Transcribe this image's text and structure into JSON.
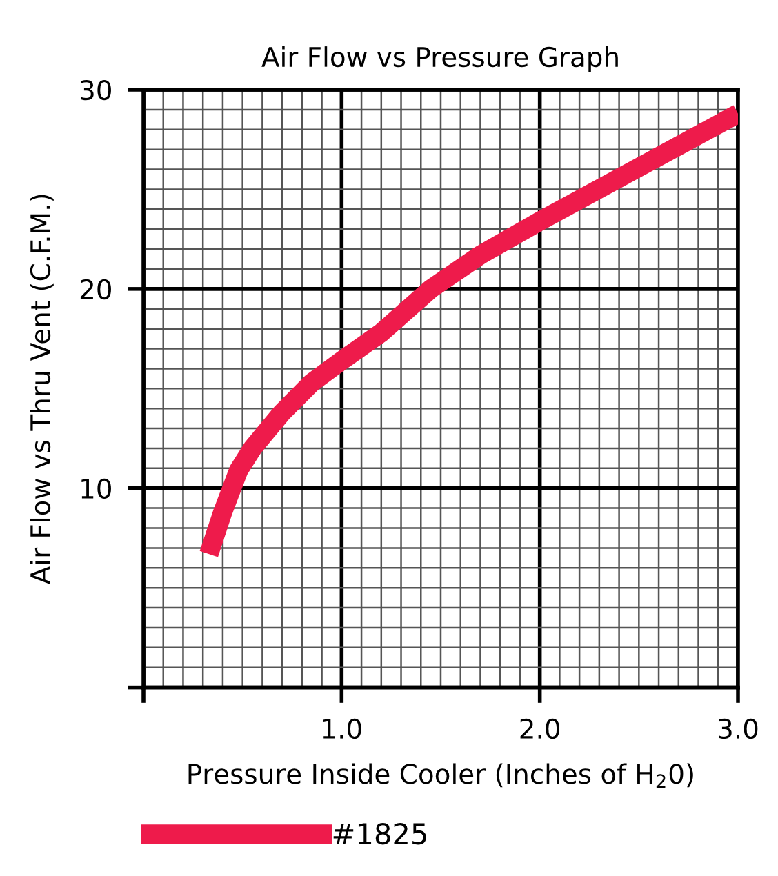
{
  "chart_data": {
    "type": "line",
    "title": "Air Flow vs Pressure Graph",
    "xlabel": "Pressure Inside Cooler (Inches of H$_{2}$0)",
    "ylabel": "Air Flow vs Thru Vent (C.F.M.)",
    "series": [
      {
        "name": "#1825",
        "color": "#ee1b4b",
        "x": [
          0.33,
          0.4,
          0.48,
          0.55,
          0.7,
          0.85,
          1.0,
          1.2,
          1.45,
          1.7,
          2.0,
          2.5,
          3.0
        ],
        "values": [
          6.7,
          8.8,
          10.9,
          12.0,
          13.8,
          15.3,
          16.4,
          17.8,
          20.0,
          21.7,
          23.4,
          26.1,
          28.8
        ]
      }
    ],
    "xlim": [
      0,
      3
    ],
    "ylim": [
      0,
      30
    ],
    "xticks": [
      {
        "value": 0,
        "label": null
      },
      {
        "value": 1,
        "label": "1.0"
      },
      {
        "value": 2,
        "label": "2.0"
      },
      {
        "value": 3,
        "label": "3.0"
      }
    ],
    "yticks": [
      {
        "value": 0,
        "label": null
      },
      10,
      20,
      30
    ],
    "grid": true,
    "legend": "bottom left",
    "marker": "none",
    "line_style": "solid"
  }
}
